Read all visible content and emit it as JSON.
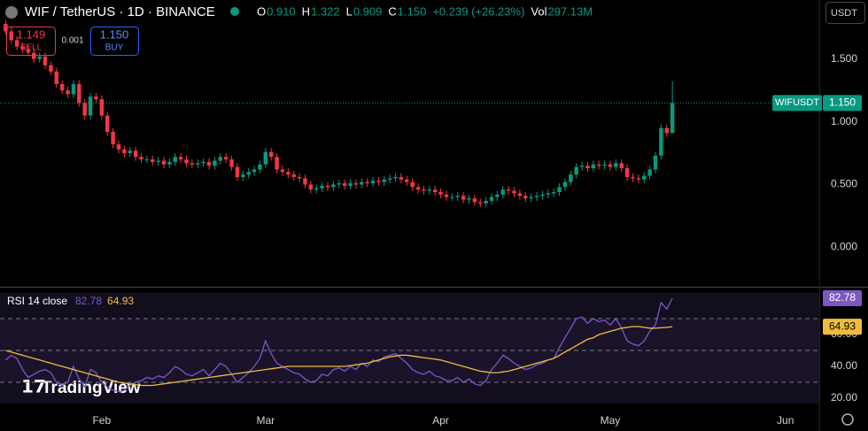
{
  "ui": {
    "symbol": "WIF / TetherUS · 1D · BINANCE",
    "ohlc": [
      {
        "key": "O",
        "value": "0.910"
      },
      {
        "key": "H",
        "value": "1.322"
      },
      {
        "key": "L",
        "value": "0.909"
      },
      {
        "key": "C",
        "value": "1.150"
      }
    ],
    "change": "+0.239 (+26.23%)",
    "volume": {
      "key": "Vol",
      "value": "297.13M"
    },
    "sell": {
      "price": "1.149",
      "label": "SELL"
    },
    "spread": "0.001",
    "buy": {
      "price": "1.150",
      "label": "BUY"
    },
    "currency": "USDT",
    "ticker_tag": "WIFUSDT",
    "last_price_label": "1.150",
    "logo": "TradingView"
  },
  "chart_data": [
    {
      "type": "candlestick",
      "up_color": "#089981",
      "down_color": "#f23645",
      "open": [
        1.78,
        1.72,
        1.65,
        1.6,
        1.58,
        1.55,
        1.5,
        1.52,
        1.45,
        1.4,
        1.3,
        1.25,
        1.22,
        1.3,
        1.15,
        1.05,
        1.2,
        1.18,
        1.05,
        0.92,
        0.82,
        0.78,
        0.75,
        0.77,
        0.72,
        0.7,
        0.7,
        0.68,
        0.69,
        0.66,
        0.68,
        0.72,
        0.7,
        0.67,
        0.66,
        0.67,
        0.68,
        0.65,
        0.69,
        0.72,
        0.7,
        0.64,
        0.56,
        0.58,
        0.6,
        0.62,
        0.66,
        0.76,
        0.72,
        0.62,
        0.6,
        0.58,
        0.56,
        0.55,
        0.5,
        0.46,
        0.47,
        0.49,
        0.48,
        0.5,
        0.51,
        0.49,
        0.51,
        0.5,
        0.52,
        0.51,
        0.53,
        0.52,
        0.54,
        0.55,
        0.56,
        0.54,
        0.52,
        0.48,
        0.46,
        0.45,
        0.46,
        0.44,
        0.42,
        0.4,
        0.4,
        0.41,
        0.38,
        0.39,
        0.36,
        0.35,
        0.37,
        0.4,
        0.42,
        0.46,
        0.45,
        0.43,
        0.41,
        0.39,
        0.4,
        0.41,
        0.42,
        0.43,
        0.44,
        0.48,
        0.52,
        0.58,
        0.64,
        0.65,
        0.63,
        0.66,
        0.65,
        0.66,
        0.64,
        0.67,
        0.63,
        0.56,
        0.55,
        0.54,
        0.57,
        0.62,
        0.73,
        0.95,
        0.91
      ],
      "high": [
        1.81,
        1.75,
        1.68,
        1.63,
        1.61,
        1.58,
        1.55,
        1.55,
        1.48,
        1.43,
        1.33,
        1.28,
        1.33,
        1.33,
        1.18,
        1.23,
        1.23,
        1.21,
        1.08,
        0.95,
        0.85,
        0.81,
        0.8,
        0.8,
        0.75,
        0.73,
        0.73,
        0.72,
        0.72,
        0.71,
        0.75,
        0.75,
        0.73,
        0.7,
        0.7,
        0.71,
        0.71,
        0.72,
        0.75,
        0.75,
        0.73,
        0.67,
        0.61,
        0.63,
        0.65,
        0.69,
        0.79,
        0.79,
        0.75,
        0.65,
        0.63,
        0.61,
        0.59,
        0.58,
        0.53,
        0.5,
        0.52,
        0.52,
        0.53,
        0.54,
        0.54,
        0.54,
        0.54,
        0.55,
        0.55,
        0.56,
        0.56,
        0.57,
        0.58,
        0.59,
        0.59,
        0.57,
        0.55,
        0.51,
        0.49,
        0.49,
        0.49,
        0.47,
        0.45,
        0.43,
        0.44,
        0.44,
        0.42,
        0.42,
        0.39,
        0.4,
        0.43,
        0.45,
        0.49,
        0.49,
        0.48,
        0.46,
        0.44,
        0.43,
        0.44,
        0.45,
        0.46,
        0.47,
        0.51,
        0.55,
        0.61,
        0.67,
        0.68,
        0.68,
        0.69,
        0.69,
        0.69,
        0.69,
        0.7,
        0.7,
        0.66,
        0.59,
        0.58,
        0.6,
        0.65,
        0.76,
        0.98,
        0.98,
        1.322
      ],
      "low": [
        1.69,
        1.62,
        1.57,
        1.55,
        1.52,
        1.47,
        1.47,
        1.42,
        1.37,
        1.27,
        1.22,
        1.19,
        1.19,
        1.12,
        1.02,
        1.02,
        1.15,
        1.02,
        0.89,
        0.79,
        0.75,
        0.72,
        0.72,
        0.69,
        0.67,
        0.67,
        0.65,
        0.65,
        0.63,
        0.63,
        0.65,
        0.67,
        0.64,
        0.63,
        0.63,
        0.64,
        0.62,
        0.62,
        0.66,
        0.67,
        0.61,
        0.53,
        0.53,
        0.55,
        0.57,
        0.59,
        0.63,
        0.69,
        0.59,
        0.57,
        0.55,
        0.53,
        0.52,
        0.47,
        0.43,
        0.43,
        0.44,
        0.45,
        0.45,
        0.47,
        0.46,
        0.46,
        0.47,
        0.47,
        0.48,
        0.48,
        0.49,
        0.49,
        0.51,
        0.52,
        0.51,
        0.49,
        0.45,
        0.43,
        0.42,
        0.42,
        0.41,
        0.39,
        0.37,
        0.37,
        0.37,
        0.35,
        0.35,
        0.33,
        0.32,
        0.32,
        0.34,
        0.37,
        0.39,
        0.42,
        0.4,
        0.38,
        0.36,
        0.36,
        0.37,
        0.38,
        0.39,
        0.4,
        0.41,
        0.45,
        0.49,
        0.55,
        0.61,
        0.6,
        0.6,
        0.62,
        0.62,
        0.61,
        0.61,
        0.6,
        0.53,
        0.52,
        0.51,
        0.51,
        0.54,
        0.59,
        0.7,
        0.88,
        0.909
      ],
      "close": [
        1.72,
        1.65,
        1.6,
        1.58,
        1.55,
        1.5,
        1.52,
        1.45,
        1.4,
        1.3,
        1.25,
        1.22,
        1.3,
        1.15,
        1.05,
        1.2,
        1.18,
        1.05,
        0.92,
        0.82,
        0.78,
        0.75,
        0.77,
        0.72,
        0.7,
        0.7,
        0.68,
        0.69,
        0.66,
        0.68,
        0.72,
        0.7,
        0.67,
        0.66,
        0.67,
        0.68,
        0.65,
        0.69,
        0.72,
        0.7,
        0.64,
        0.56,
        0.58,
        0.6,
        0.62,
        0.66,
        0.76,
        0.72,
        0.62,
        0.6,
        0.58,
        0.56,
        0.55,
        0.5,
        0.46,
        0.47,
        0.49,
        0.48,
        0.5,
        0.51,
        0.49,
        0.51,
        0.5,
        0.52,
        0.51,
        0.53,
        0.52,
        0.54,
        0.55,
        0.56,
        0.54,
        0.52,
        0.48,
        0.46,
        0.45,
        0.46,
        0.44,
        0.42,
        0.4,
        0.4,
        0.41,
        0.38,
        0.39,
        0.36,
        0.35,
        0.37,
        0.4,
        0.42,
        0.46,
        0.45,
        0.43,
        0.41,
        0.39,
        0.4,
        0.41,
        0.42,
        0.43,
        0.44,
        0.48,
        0.52,
        0.58,
        0.64,
        0.65,
        0.63,
        0.66,
        0.65,
        0.66,
        0.64,
        0.67,
        0.63,
        0.56,
        0.55,
        0.54,
        0.57,
        0.62,
        0.73,
        0.95,
        0.91,
        1.15
      ],
      "xlim": [
        -1,
        144
      ],
      "xticks": [
        {
          "value": 17,
          "label": "Feb"
        },
        {
          "value": 46,
          "label": "Mar"
        },
        {
          "value": 77,
          "label": "Apr"
        },
        {
          "value": 107,
          "label": "May"
        },
        {
          "value": 138,
          "label": "Jun"
        }
      ],
      "ylim": [
        -0.3,
        1.97
      ],
      "yticks": [
        {
          "value": 0,
          "label": "0.000"
        },
        {
          "value": 0.5,
          "label": "0.500"
        },
        {
          "value": 1,
          "label": "1.000"
        },
        {
          "value": 1.5,
          "label": "1.500"
        }
      ]
    },
    {
      "type": "line",
      "title": "RSI 14 close",
      "series": [
        {
          "color": "#7e57c2",
          "values": [
            44,
            47,
            45,
            38,
            33,
            35,
            37,
            38,
            36,
            30,
            28,
            30,
            40,
            32,
            27,
            38,
            36,
            30,
            27,
            25,
            24,
            25,
            28,
            30,
            31,
            33,
            32,
            34,
            33,
            36,
            40,
            38,
            35,
            34,
            36,
            38,
            34,
            38,
            42,
            40,
            35,
            30,
            33,
            36,
            40,
            45,
            56,
            48,
            42,
            40,
            38,
            36,
            35,
            32,
            30,
            31,
            35,
            34,
            38,
            39,
            37,
            40,
            38,
            42,
            40,
            44,
            43,
            46,
            47,
            48,
            45,
            42,
            38,
            36,
            35,
            37,
            34,
            33,
            31,
            31,
            33,
            30,
            32,
            29,
            28,
            31,
            38,
            42,
            47,
            45,
            42,
            40,
            38,
            39,
            41,
            42,
            44,
            45,
            52,
            58,
            64,
            70,
            71,
            67,
            70,
            68,
            69,
            66,
            70,
            64,
            56,
            54,
            53,
            56,
            62,
            66,
            80,
            76,
            82.78
          ]
        },
        {
          "color": "#f0bd3a",
          "values": [
            50,
            49,
            48,
            47,
            46,
            45,
            44,
            43,
            42,
            41,
            40,
            39,
            38,
            37,
            36,
            35,
            34,
            33,
            32,
            31,
            30,
            29.5,
            29,
            28.5,
            28,
            28,
            28,
            28.5,
            29,
            29.5,
            30,
            30.5,
            31,
            31.5,
            32,
            32.5,
            33,
            33.5,
            34,
            34.5,
            35,
            35.5,
            36,
            36.5,
            37,
            37.5,
            38,
            38.5,
            39,
            39.5,
            40,
            40,
            40,
            40,
            40,
            40,
            40,
            40,
            40,
            40,
            40,
            40.5,
            41,
            41.5,
            42,
            43,
            44,
            45,
            46,
            46.5,
            47,
            47,
            46.5,
            46,
            45.5,
            45,
            44.5,
            44,
            43,
            42,
            41,
            40,
            39,
            38,
            37,
            36.5,
            36,
            36,
            36.5,
            37,
            38,
            39,
            40,
            41,
            42,
            43,
            44,
            45,
            47,
            49,
            51,
            53,
            55,
            57,
            58,
            60,
            61,
            62,
            63,
            64,
            64.5,
            65,
            65,
            64.5,
            64,
            64,
            64.2,
            64.5,
            64.93
          ]
        }
      ],
      "levels": [
        70,
        50,
        30
      ],
      "ylim": [
        14.4,
        88.9
      ],
      "yticks": [
        {
          "value": 20,
          "label": "20.00"
        },
        {
          "value": 40,
          "label": "40.00"
        },
        {
          "value": 60,
          "label": "60.00"
        }
      ]
    }
  ]
}
